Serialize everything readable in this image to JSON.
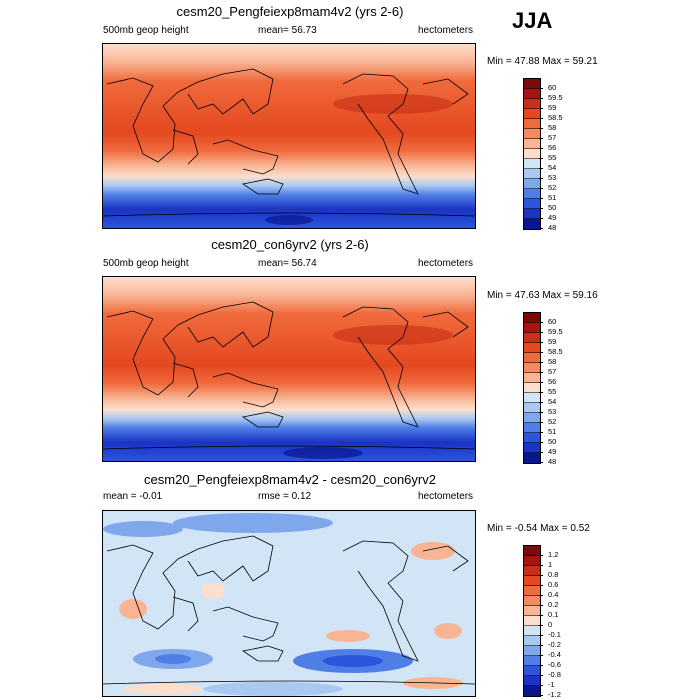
{
  "season": "JJA",
  "panels": [
    {
      "title": "cesm20_Pengfeiexp8mam4v2 (yrs 2-6)",
      "left_label": "500mb geop height",
      "center_label": "mean=  56.73",
      "right_label": "hectometers",
      "minmax": "Min =  47.88 Max =  59.21",
      "levels": [
        "60",
        "59.5",
        "59",
        "58.5",
        "58",
        "57",
        "56",
        "55",
        "54",
        "53",
        "52",
        "51",
        "50",
        "49",
        "48"
      ]
    },
    {
      "title": "cesm20_con6yrv2 (yrs 2-6)",
      "left_label": "500mb geop height",
      "center_label": "mean=  56.74",
      "right_label": "hectometers",
      "minmax": "Min =  47.63 Max =  59.16",
      "levels": [
        "60",
        "59.5",
        "59",
        "58.5",
        "58",
        "57",
        "56",
        "55",
        "54",
        "53",
        "52",
        "51",
        "50",
        "49",
        "48"
      ]
    },
    {
      "title": "cesm20_Pengfeiexp8mam4v2 - cesm20_con6yrv2",
      "left_label": "mean =  -0.01",
      "center_label": "rmse =   0.12",
      "right_label": "hectometers",
      "minmax": "Min =  -0.54 Max =   0.52",
      "levels": [
        "1.2",
        "1",
        "0.8",
        "0.6",
        "0.4",
        "0.2",
        "0.1",
        "0",
        "-0.1",
        "-0.2",
        "-0.4",
        "-0.6",
        "-0.8",
        "-1",
        "-1.2"
      ]
    }
  ],
  "colors": {
    "scale": [
      "#7b0b0b",
      "#a5140e",
      "#c82f14",
      "#e4481f",
      "#f06a3d",
      "#f58a60",
      "#f8b493",
      "#fbdfcc",
      "#d2e5f7",
      "#a9c8f2",
      "#7fa7ec",
      "#4f7ee6",
      "#2b55dc",
      "#1a33c4",
      "#0a1590"
    ]
  }
}
